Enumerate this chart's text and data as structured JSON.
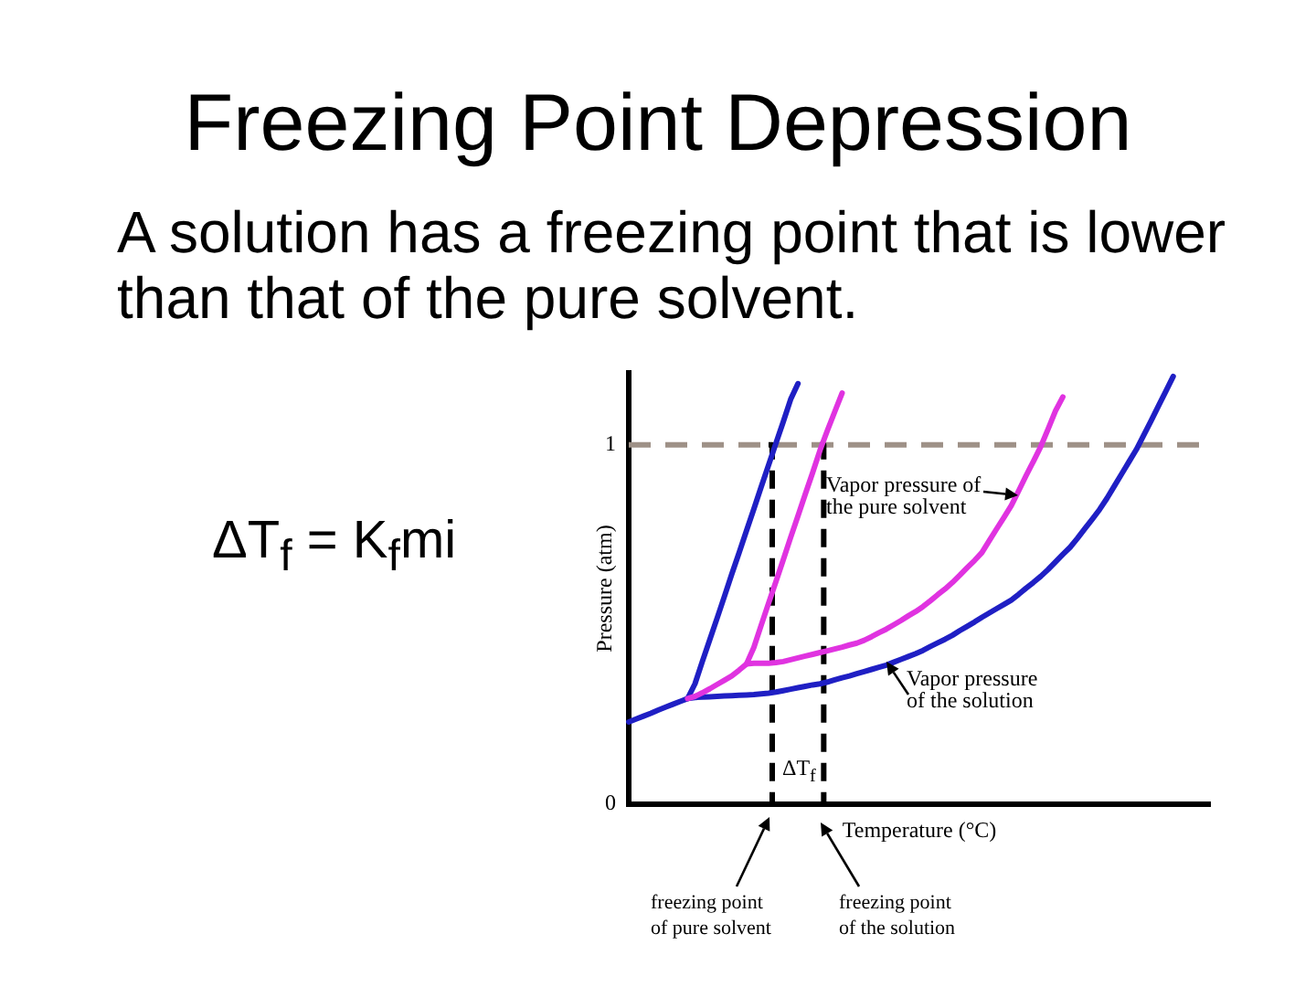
{
  "chart_data": {
    "type": "line",
    "title": "Freezing Point Depression",
    "subtitle": "A solution has a freezing point that is lower than that of the pure solvent.",
    "xlabel": "Temperature (°C)",
    "ylabel": "Pressure (atm)",
    "annotations": [
      "ΔT$_{f}$ = K$_{f}$mi",
      "Vapor pressure of the pure solvent",
      "Vapor pressure of the solution",
      "ΔT$_{f}$",
      "freezing point of pure solvent",
      "freezing point of the solution"
    ],
    "categories": [
      null,
      null,
      null,
      null,
      null,
      null,
      null,
      null,
      null,
      null,
      null,
      null,
      null,
      null,
      null,
      null,
      null,
      null,
      null,
      null,
      null,
      null,
      null,
      null,
      null,
      null,
      null,
      null,
      null,
      null,
      null,
      null,
      null,
      null,
      null,
      null,
      null,
      null,
      null,
      null,
      null,
      null,
      null,
      null,
      null,
      null,
      null,
      null,
      null,
      null,
      null,
      null,
      null,
      null,
      null,
      null,
      null,
      null,
      null,
      null,
      null,
      null,
      null,
      null,
      null,
      null,
      null,
      null,
      null,
      null,
      null,
      null,
      null,
      null,
      null,
      null,
      null,
      null,
      null,
      null
    ],
    "series": [
      {
        "type": "step",
        "color": "#000000",
        "line_style": "dashed",
        "values": [
          null,
          null,
          null,
          null,
          null,
          null,
          null,
          null,
          null,
          null,
          null,
          null,
          null,
          null,
          null,
          null,
          null,
          null,
          null,
          1,
          0,
          null,
          null,
          null,
          null,
          null,
          1,
          0,
          null,
          null,
          null,
          null,
          null,
          null,
          null,
          null,
          null,
          null,
          null,
          null,
          null,
          null,
          null,
          null,
          null,
          null,
          null,
          null,
          null,
          null,
          null,
          null,
          null,
          null,
          null,
          null,
          null,
          null,
          null,
          null,
          null,
          null,
          null,
          null,
          null,
          null,
          null,
          null,
          null,
          null,
          null,
          null,
          null,
          null,
          null,
          null,
          null,
          null,
          null,
          null
        ]
      },
      {
        "color": "#1f1fc4",
        "values": [
          0.229,
          0.237,
          0.245,
          0.253,
          0.262,
          0.27,
          0.278,
          0.286,
          0.294,
          0.297,
          0.298,
          0.299,
          0.3,
          0.301,
          0.302,
          0.303,
          0.304,
          0.305,
          0.307,
          0.309,
          0.312,
          0.316,
          0.32,
          0.324,
          0.328,
          0.332,
          0.335,
          0.34,
          0.346,
          0.352,
          0.357,
          0.363,
          0.369,
          0.375,
          0.381,
          0.387,
          0.395,
          0.403,
          0.411,
          0.419,
          0.428,
          0.439,
          0.449,
          0.459,
          0.47,
          0.483,
          0.495,
          0.507,
          0.52,
          0.532,
          0.544,
          0.556,
          0.568,
          0.584,
          0.601,
          0.617,
          0.634,
          0.653,
          0.674,
          0.695,
          0.715,
          0.74,
          0.767,
          0.793,
          0.82,
          0.851,
          0.885,
          0.919,
          0.953,
          0.987,
          1.027,
          1.067,
          1.108,
          1.149,
          1.19,
          null,
          null,
          null,
          null,
          null
        ]
      },
      {
        "color": "#1f1fc4",
        "values": [
          null,
          null,
          null,
          null,
          null,
          null,
          null,
          null,
          0.294,
          0.335,
          0.397,
          0.457,
          0.517,
          0.578,
          0.64,
          0.7,
          0.761,
          0.821,
          0.883,
          0.943,
          1.004,
          1.064,
          1.126,
          1.17,
          null,
          null,
          null,
          null,
          null,
          null,
          null,
          null,
          null,
          null,
          null,
          null,
          null,
          null,
          null,
          null,
          null,
          null,
          null,
          null,
          null,
          null,
          null,
          null,
          null,
          null,
          null,
          null,
          null,
          null,
          null,
          null,
          null,
          null,
          null,
          null,
          null,
          null,
          null,
          null,
          null,
          null,
          null,
          null,
          null,
          null,
          null,
          null,
          null,
          null,
          null,
          null,
          null,
          null,
          null,
          null
        ]
      },
      {
        "color": "#e033e0",
        "values": [
          null,
          null,
          null,
          null,
          null,
          null,
          null,
          null,
          0.294,
          0.3,
          0.31,
          0.321,
          0.333,
          0.345,
          0.357,
          0.373,
          0.39,
          0.392,
          0.392,
          0.392,
          0.394,
          0.397,
          0.402,
          0.407,
          0.412,
          0.417,
          0.422,
          0.427,
          0.432,
          0.437,
          0.443,
          0.448,
          0.456,
          0.466,
          0.477,
          0.487,
          0.499,
          0.511,
          0.524,
          0.536,
          0.55,
          0.566,
          0.583,
          0.599,
          0.617,
          0.637,
          0.658,
          0.678,
          0.7,
          0.733,
          0.766,
          0.798,
          0.831,
          0.872,
          0.914,
          0.954,
          0.995,
          1.044,
          1.094,
          1.133,
          null,
          null,
          null,
          null,
          null,
          null,
          null,
          null,
          null,
          null,
          null,
          null,
          null,
          null,
          null,
          null,
          null,
          null,
          null,
          null
        ]
      },
      {
        "color": "#e033e0",
        "values": [
          null,
          null,
          null,
          null,
          null,
          null,
          null,
          null,
          null,
          null,
          null,
          null,
          null,
          null,
          null,
          null,
          0.39,
          0.436,
          0.498,
          0.559,
          0.619,
          0.68,
          0.742,
          0.802,
          0.863,
          0.923,
          0.985,
          1.04,
          1.092,
          1.144,
          null,
          null,
          null,
          null,
          null,
          null,
          null,
          null,
          null,
          null,
          null,
          null,
          null,
          null,
          null,
          null,
          null,
          null,
          null,
          null,
          null,
          null,
          null,
          null,
          null,
          null,
          null,
          null,
          null,
          null,
          null,
          null,
          null,
          null,
          null,
          null,
          null,
          null,
          null,
          null,
          null,
          null,
          null,
          null,
          null,
          null,
          null,
          null,
          null,
          null
        ]
      }
    ],
    "ref_lines": [
      {
        "axis": "y",
        "value": 1,
        "color": "#9e9187",
        "line_style": "dashed"
      }
    ],
    "ylim": [
      0,
      1.2
    ],
    "yticks": [
      0,
      1
    ],
    "tick_labels": "y",
    "marker": "none"
  }
}
